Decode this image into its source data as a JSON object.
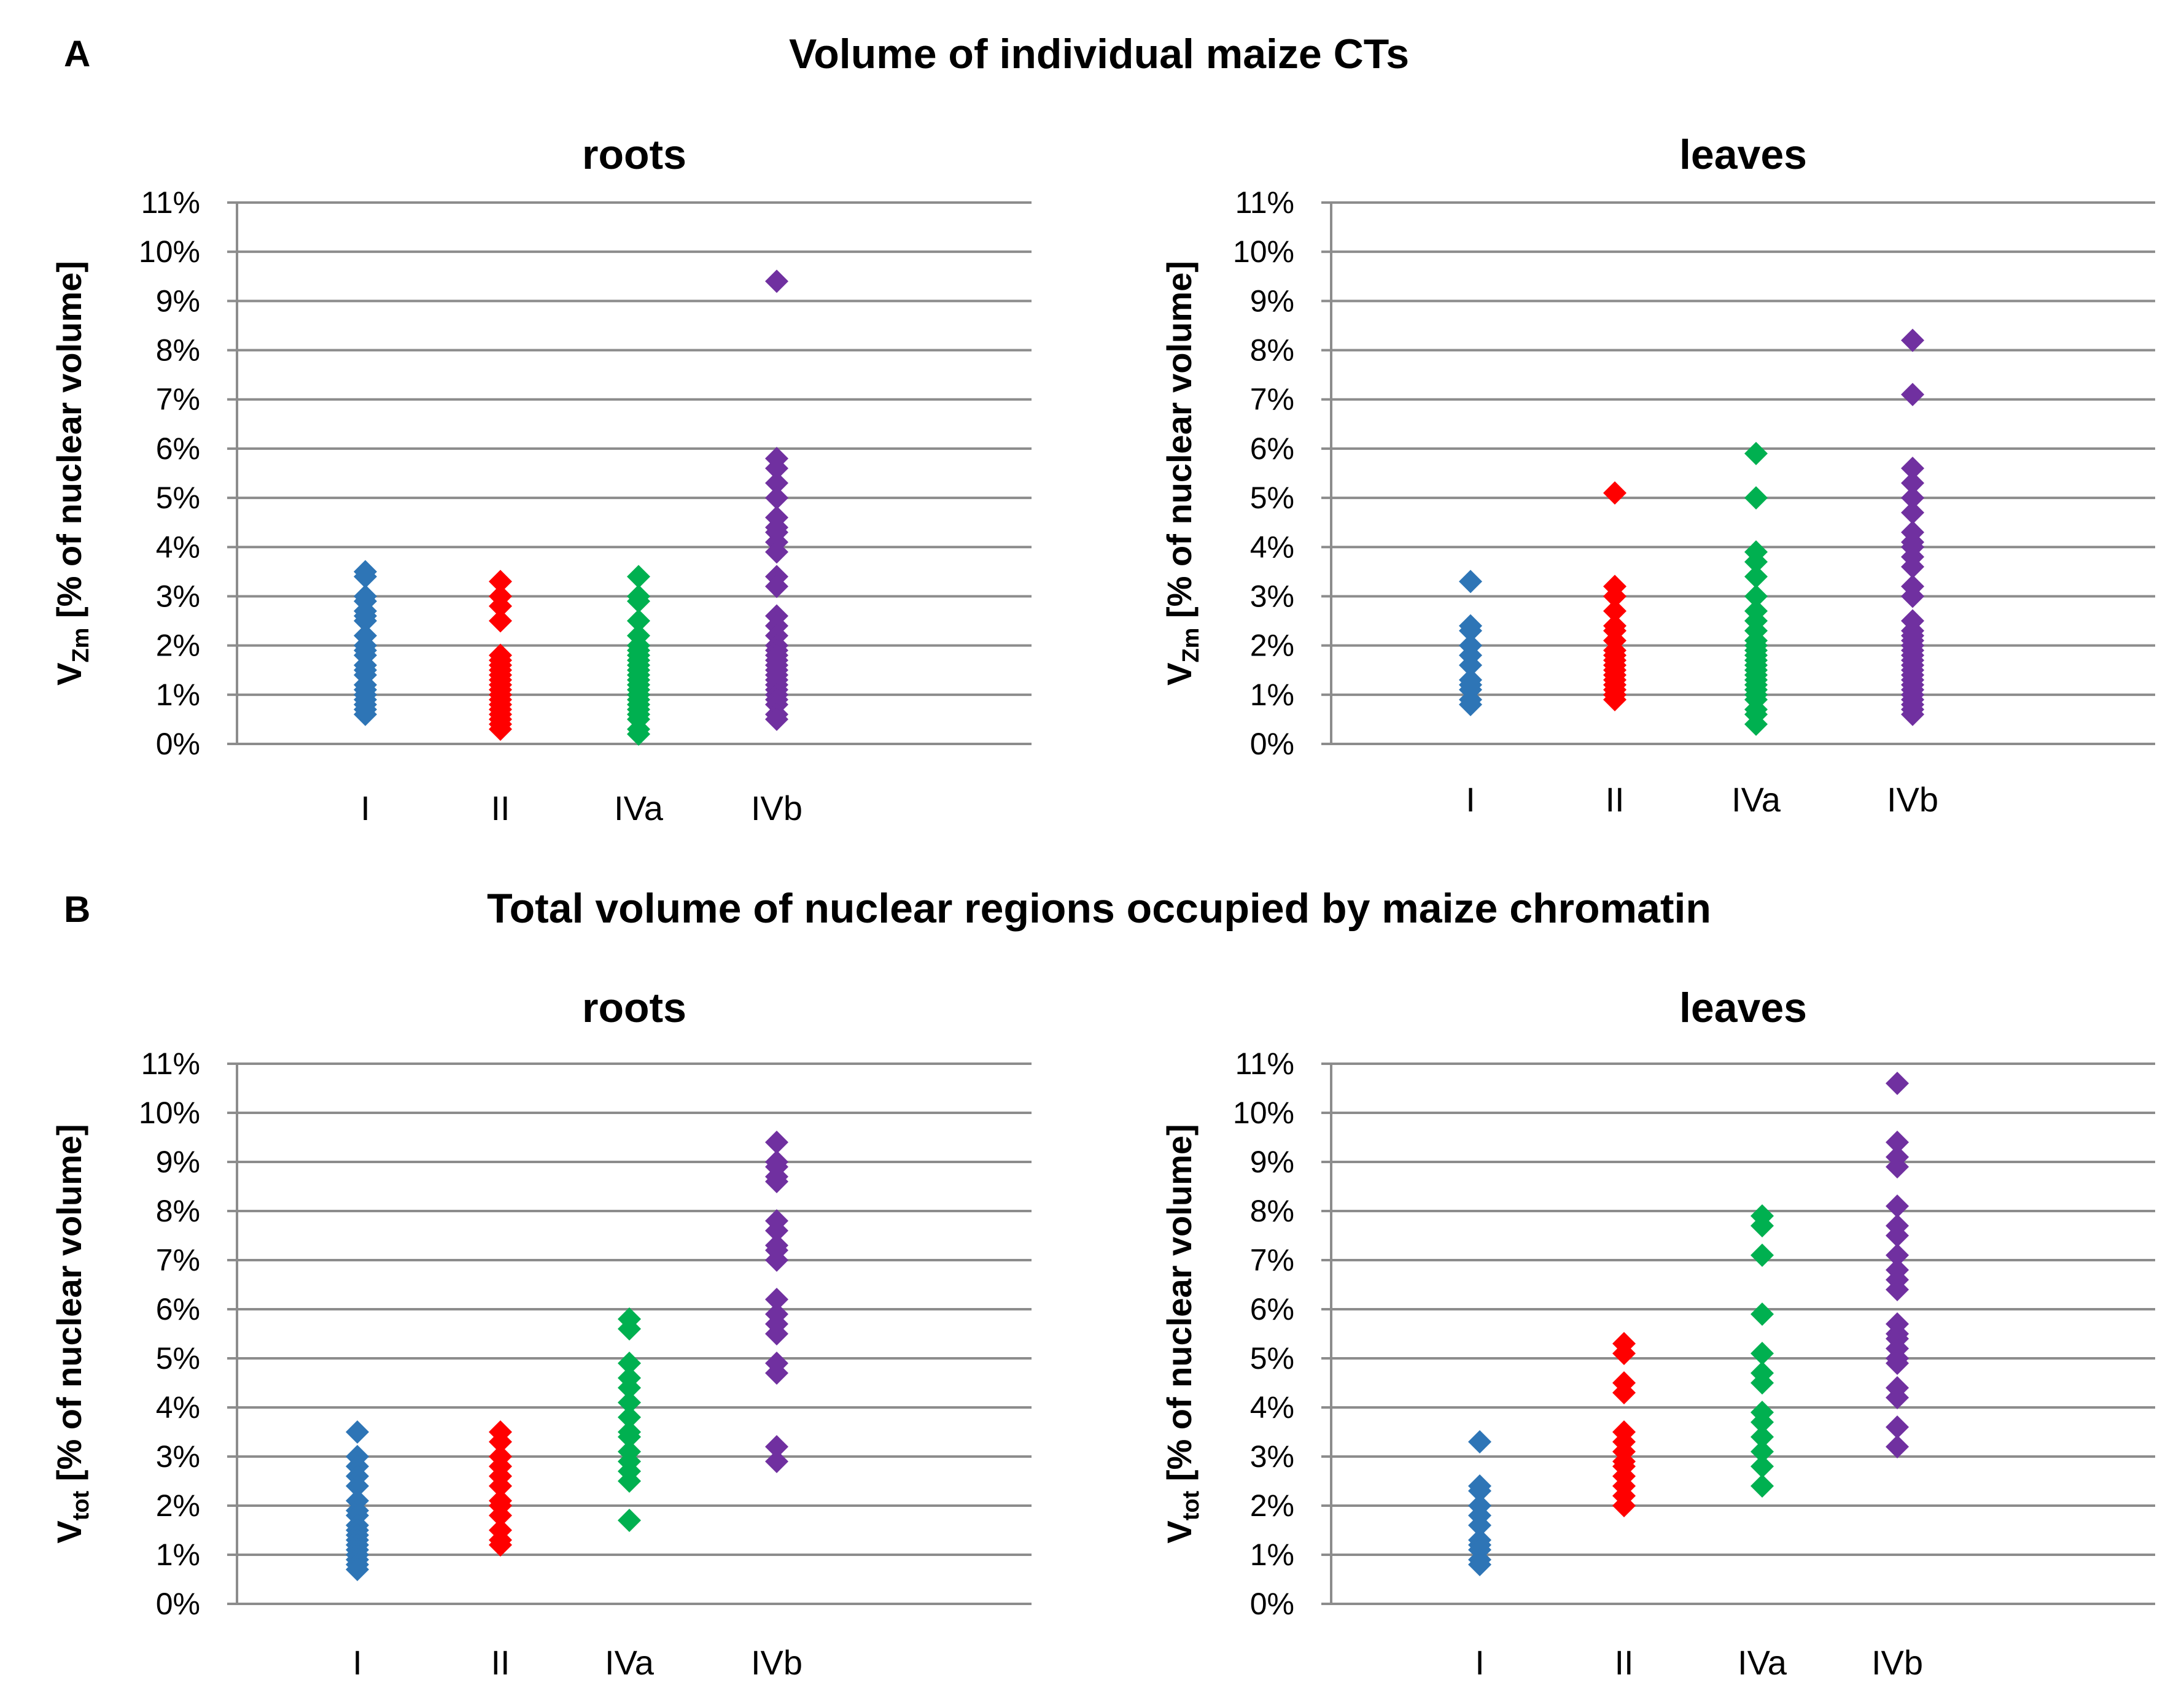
{
  "section_a": {
    "letter": "A",
    "title": "Volume of individual maize CTs"
  },
  "section_b": {
    "letter": "B",
    "title": "Total volume of nuclear regions occupied by maize chromatin"
  },
  "chart_data": [
    {
      "id": "a-roots",
      "type": "scatter",
      "title": "roots",
      "ylabel_main": "V",
      "ylabel_sub": "Zm",
      "ylabel_rest": " [% of nuclear volume]",
      "ylim": [
        0,
        11
      ],
      "yticks": [
        "0%",
        "1%",
        "2%",
        "3%",
        "4%",
        "5%",
        "6%",
        "7%",
        "8%",
        "9%",
        "10%",
        "11%"
      ],
      "categories": [
        "I",
        "II",
        "IVa",
        "IVb"
      ],
      "series": [
        {
          "name": "I",
          "color": "#2e75b6",
          "values": [
            3.5,
            3.4,
            3.0,
            2.9,
            2.7,
            2.6,
            2.5,
            2.2,
            2.0,
            1.9,
            1.8,
            1.6,
            1.5,
            1.4,
            1.2,
            1.1,
            1.0,
            0.9,
            0.8,
            0.7,
            0.6
          ]
        },
        {
          "name": "II",
          "color": "#ff0000",
          "values": [
            3.3,
            3.0,
            2.8,
            2.5,
            1.8,
            1.7,
            1.6,
            1.5,
            1.4,
            1.3,
            1.2,
            1.1,
            1.0,
            0.9,
            0.8,
            0.7,
            0.6,
            0.5,
            0.4,
            0.3
          ]
        },
        {
          "name": "IVa",
          "color": "#00b050",
          "values": [
            3.4,
            3.0,
            2.9,
            2.5,
            2.2,
            2.0,
            1.9,
            1.8,
            1.7,
            1.6,
            1.5,
            1.4,
            1.3,
            1.2,
            1.1,
            1.0,
            0.9,
            0.8,
            0.7,
            0.6,
            0.5,
            0.3,
            0.2
          ]
        },
        {
          "name": "IVb",
          "color": "#7030a0",
          "values": [
            9.4,
            5.8,
            5.6,
            5.3,
            5.0,
            4.6,
            4.4,
            4.3,
            4.1,
            3.9,
            3.4,
            3.2,
            2.6,
            2.4,
            2.2,
            2.0,
            1.9,
            1.8,
            1.7,
            1.6,
            1.5,
            1.4,
            1.3,
            1.2,
            1.1,
            1.0,
            0.9,
            0.8,
            0.6,
            0.5
          ]
        }
      ]
    },
    {
      "id": "a-leaves",
      "type": "scatter",
      "title": "leaves",
      "ylabel_main": "V",
      "ylabel_sub": "Zm",
      "ylabel_rest": " [% of nuclear volume]",
      "ylim": [
        0,
        11
      ],
      "yticks": [
        "0%",
        "1%",
        "2%",
        "3%",
        "4%",
        "5%",
        "6%",
        "7%",
        "8%",
        "9%",
        "10%",
        "11%"
      ],
      "categories": [
        "I",
        "II",
        "IVa",
        "IVb"
      ],
      "series": [
        {
          "name": "I",
          "color": "#2e75b6",
          "values": [
            3.3,
            2.4,
            2.3,
            2.0,
            1.8,
            1.6,
            1.3,
            1.2,
            1.1,
            0.9,
            0.8
          ]
        },
        {
          "name": "II",
          "color": "#ff0000",
          "values": [
            5.1,
            3.2,
            3.0,
            2.7,
            2.4,
            2.3,
            2.1,
            1.9,
            1.8,
            1.7,
            1.6,
            1.5,
            1.4,
            1.3,
            1.2,
            1.1,
            1.0,
            0.9
          ]
        },
        {
          "name": "IVa",
          "color": "#00b050",
          "values": [
            5.9,
            5.0,
            3.9,
            3.7,
            3.4,
            3.0,
            2.7,
            2.5,
            2.3,
            2.1,
            2.0,
            1.9,
            1.8,
            1.7,
            1.6,
            1.5,
            1.4,
            1.3,
            1.2,
            1.1,
            1.0,
            0.9,
            0.7,
            0.6,
            0.4
          ]
        },
        {
          "name": "IVb",
          "color": "#7030a0",
          "values": [
            8.2,
            7.1,
            5.6,
            5.3,
            5.0,
            4.7,
            4.3,
            4.1,
            4.0,
            3.8,
            3.6,
            3.2,
            3.0,
            2.5,
            2.3,
            2.2,
            2.1,
            2.0,
            1.9,
            1.8,
            1.7,
            1.6,
            1.5,
            1.4,
            1.3,
            1.2,
            1.1,
            1.0,
            0.9,
            0.8,
            0.7,
            0.6
          ]
        }
      ]
    },
    {
      "id": "b-roots",
      "type": "scatter",
      "title": "roots",
      "ylabel_main": "V",
      "ylabel_sub": "tot",
      "ylabel_rest": " [% of nuclear volume]",
      "ylim": [
        0,
        11
      ],
      "yticks": [
        "0%",
        "1%",
        "2%",
        "3%",
        "4%",
        "5%",
        "6%",
        "7%",
        "8%",
        "9%",
        "10%",
        "11%"
      ],
      "categories": [
        "I",
        "II",
        "IVa",
        "IVb"
      ],
      "series": [
        {
          "name": "I",
          "color": "#2e75b6",
          "values": [
            3.5,
            3.0,
            2.8,
            2.6,
            2.4,
            2.1,
            1.9,
            1.8,
            1.6,
            1.5,
            1.4,
            1.3,
            1.2,
            1.1,
            1.0,
            0.9,
            0.8,
            0.7
          ]
        },
        {
          "name": "II",
          "color": "#ff0000",
          "values": [
            3.5,
            3.3,
            3.0,
            2.8,
            2.6,
            2.4,
            2.1,
            2.0,
            1.8,
            1.5,
            1.3,
            1.2
          ]
        },
        {
          "name": "IVa",
          "color": "#00b050",
          "values": [
            5.8,
            5.6,
            4.9,
            4.6,
            4.4,
            4.1,
            3.8,
            3.5,
            3.4,
            3.1,
            2.9,
            2.7,
            2.5,
            1.7
          ]
        },
        {
          "name": "IVb",
          "color": "#7030a0",
          "values": [
            9.4,
            9.0,
            8.9,
            8.7,
            8.6,
            7.8,
            7.6,
            7.3,
            7.2,
            7.0,
            6.2,
            5.9,
            5.7,
            5.5,
            4.9,
            4.7,
            3.2,
            2.9
          ]
        }
      ]
    },
    {
      "id": "b-leaves",
      "type": "scatter",
      "title": "leaves",
      "ylabel_main": "V",
      "ylabel_sub": "tot",
      "ylabel_rest": " [% of nuclear volume]",
      "ylim": [
        0,
        11
      ],
      "yticks": [
        "0%",
        "1%",
        "2%",
        "3%",
        "4%",
        "5%",
        "6%",
        "7%",
        "8%",
        "9%",
        "10%",
        "11%"
      ],
      "categories": [
        "I",
        "II",
        "IVa",
        "IVb"
      ],
      "series": [
        {
          "name": "I",
          "color": "#2e75b6",
          "values": [
            3.3,
            2.4,
            2.3,
            2.0,
            1.8,
            1.6,
            1.3,
            1.2,
            1.1,
            0.9,
            0.8
          ]
        },
        {
          "name": "II",
          "color": "#ff0000",
          "values": [
            5.3,
            5.1,
            4.5,
            4.3,
            3.5,
            3.3,
            3.1,
            2.9,
            2.8,
            2.6,
            2.4,
            2.2,
            2.0
          ]
        },
        {
          "name": "IVa",
          "color": "#00b050",
          "values": [
            7.9,
            7.7,
            7.1,
            5.9,
            5.1,
            4.7,
            4.5,
            3.9,
            3.7,
            3.4,
            3.1,
            2.8,
            2.4
          ]
        },
        {
          "name": "IVb",
          "color": "#7030a0",
          "values": [
            10.6,
            9.4,
            9.1,
            8.9,
            8.1,
            7.7,
            7.5,
            7.1,
            6.8,
            6.6,
            6.4,
            5.7,
            5.5,
            5.4,
            5.2,
            5.0,
            4.9,
            4.4,
            4.2,
            3.6,
            3.2
          ]
        }
      ]
    }
  ]
}
